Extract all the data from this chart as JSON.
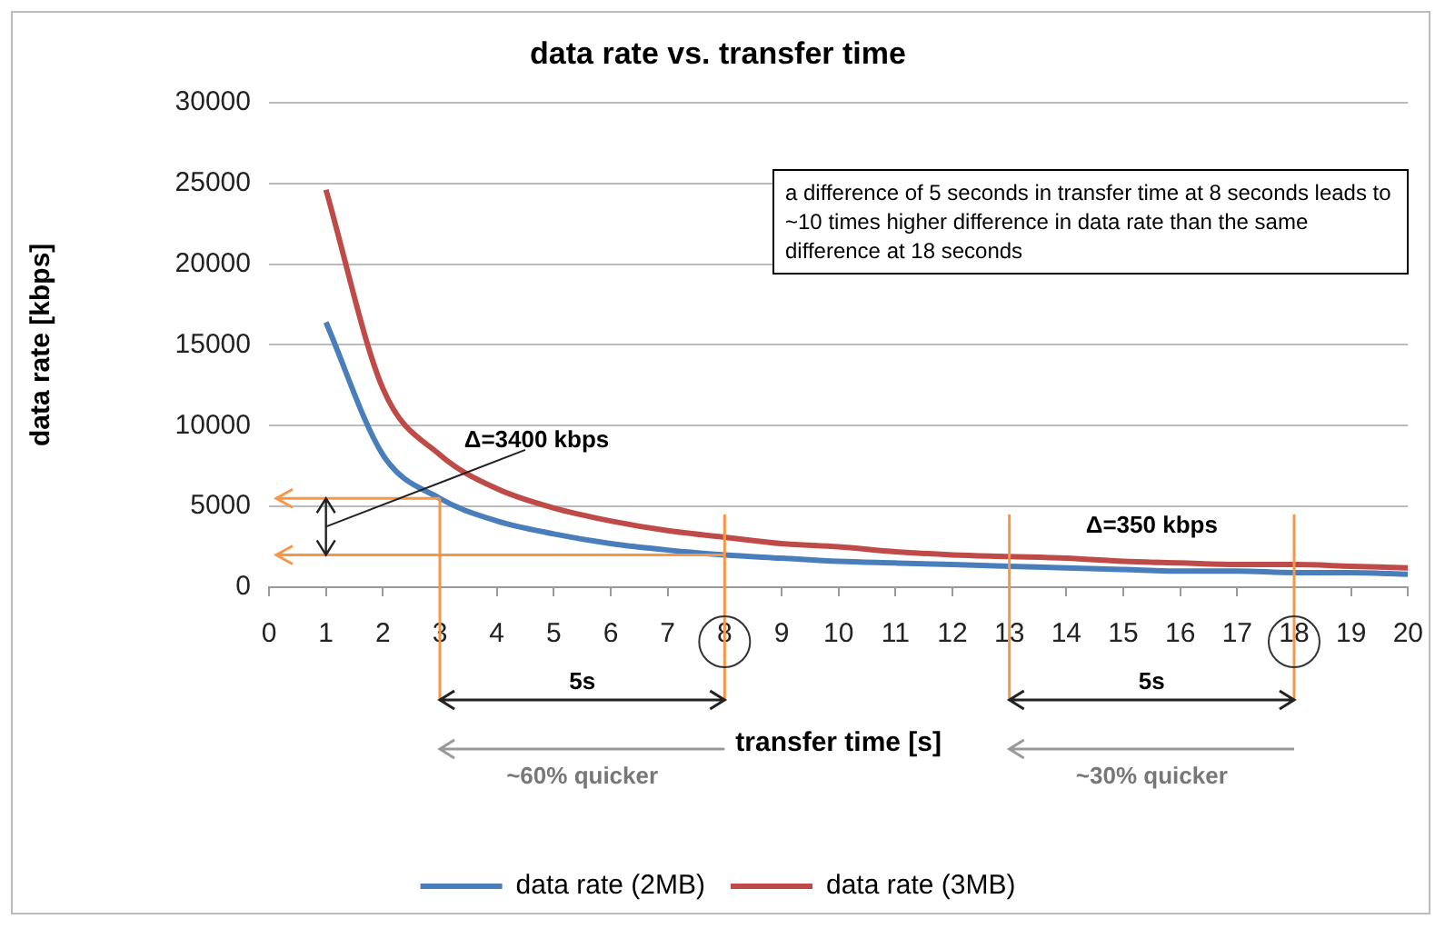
{
  "chart_data": {
    "type": "line",
    "title": "data rate vs. transfer time",
    "xlabel": "transfer time [s]",
    "ylabel": "data rate [kbps]",
    "x": [
      1,
      2,
      3,
      4,
      5,
      6,
      7,
      8,
      9,
      10,
      11,
      12,
      13,
      14,
      15,
      16,
      17,
      18,
      19,
      20
    ],
    "series": [
      {
        "name": "data rate (2MB)",
        "color": "#4a7ebb",
        "values": [
          16400,
          8200,
          5500,
          4100,
          3300,
          2700,
          2300,
          2000,
          1800,
          1600,
          1500,
          1400,
          1300,
          1200,
          1100,
          1000,
          1000,
          900,
          900,
          800
        ]
      },
      {
        "name": "data rate (3MB)",
        "color": "#be4b48",
        "values": [
          24600,
          12300,
          8200,
          6100,
          4900,
          4100,
          3500,
          3100,
          2700,
          2500,
          2200,
          2000,
          1900,
          1800,
          1600,
          1500,
          1400,
          1400,
          1300,
          1200
        ]
      }
    ],
    "xlim": [
      0,
      20
    ],
    "xticks": [
      0,
      1,
      2,
      3,
      4,
      5,
      6,
      7,
      8,
      9,
      10,
      11,
      12,
      13,
      14,
      15,
      16,
      17,
      18,
      19,
      20
    ],
    "ylim": [
      0,
      30000
    ],
    "yticks": [
      0,
      5000,
      10000,
      15000,
      20000,
      25000,
      30000
    ],
    "grid": "y",
    "legend": "bottom",
    "marker": "none",
    "ref_lines": [
      {
        "axis": "y",
        "value": 5500,
        "color": "#f79646"
      },
      {
        "axis": "y",
        "value": 2000,
        "color": "#f79646"
      },
      {
        "axis": "x",
        "value": 3,
        "color": "#f79646"
      },
      {
        "axis": "x",
        "value": 8,
        "color": "#f79646"
      },
      {
        "axis": "x",
        "value": 13,
        "color": "#f79646"
      },
      {
        "axis": "x",
        "value": 18,
        "color": "#f79646"
      }
    ],
    "annotations": [
      "a difference of 5 seconds in transfer time at 8 seconds leads to ~10 times higher difference in data rate than the same difference at 18 seconds",
      "Δ=3400 kbps",
      "Δ=350 kbps",
      "5s",
      "5s",
      "~60% quicker",
      "~30% quicker"
    ]
  }
}
